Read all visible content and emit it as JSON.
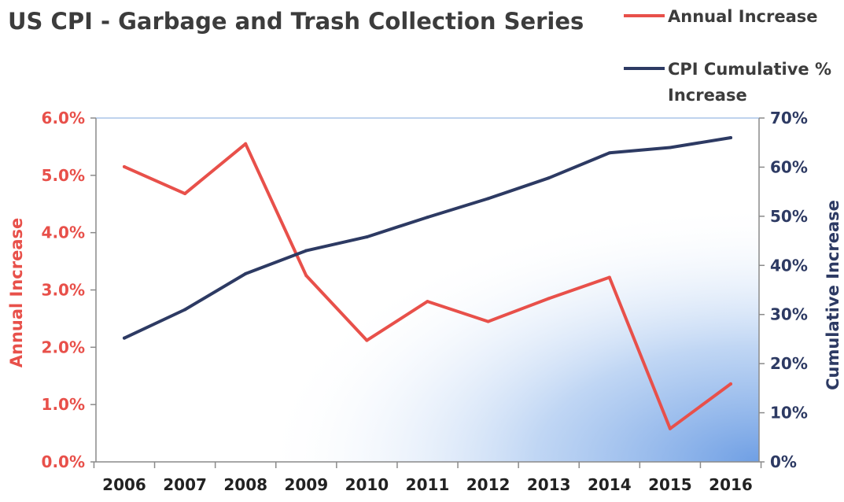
{
  "chart_data": {
    "type": "line",
    "title": "US CPI - Garbage and Trash Collection Series",
    "categories": [
      "2006",
      "2007",
      "2008",
      "2009",
      "2010",
      "2011",
      "2012",
      "2013",
      "2014",
      "2015",
      "2016"
    ],
    "left_axis": {
      "label": "Annual Increase",
      "ylim": [
        0,
        6
      ],
      "tick_labels": [
        "0.0%",
        "1.0%",
        "2.0%",
        "3.0%",
        "4.0%",
        "5.0%",
        "6.0%"
      ],
      "color": "#e8504a"
    },
    "right_axis": {
      "label": "Cumulative Increase",
      "ylim": [
        0,
        70
      ],
      "tick_labels": [
        "0%",
        "10%",
        "20%",
        "30%",
        "40%",
        "50%",
        "60%",
        "70%"
      ],
      "color": "#2d3a63"
    },
    "series": [
      {
        "name": "Annual Increase",
        "axis": "left",
        "color": "#e8504a",
        "values": [
          5.15,
          4.68,
          5.55,
          3.25,
          2.12,
          2.8,
          2.45,
          2.85,
          3.22,
          0.58,
          1.36
        ]
      },
      {
        "name": "CPI Cumulative % Increase",
        "axis": "right",
        "color": "#2d3a63",
        "values": [
          25.2,
          31.0,
          38.3,
          43.0,
          45.8,
          49.8,
          53.6,
          57.8,
          62.9,
          64.0,
          66.0
        ]
      }
    ],
    "legend": {
      "placement": "top-right",
      "entries": [
        {
          "label": "Annual Increase",
          "color": "#e8504a"
        },
        {
          "label_lines": [
            "CPI Cumulative %",
            "Increase"
          ],
          "color": "#2d3a63"
        }
      ]
    },
    "grid": false,
    "background_gradient": {
      "from": "#ffffff",
      "to": "#7aa8e6"
    }
  }
}
